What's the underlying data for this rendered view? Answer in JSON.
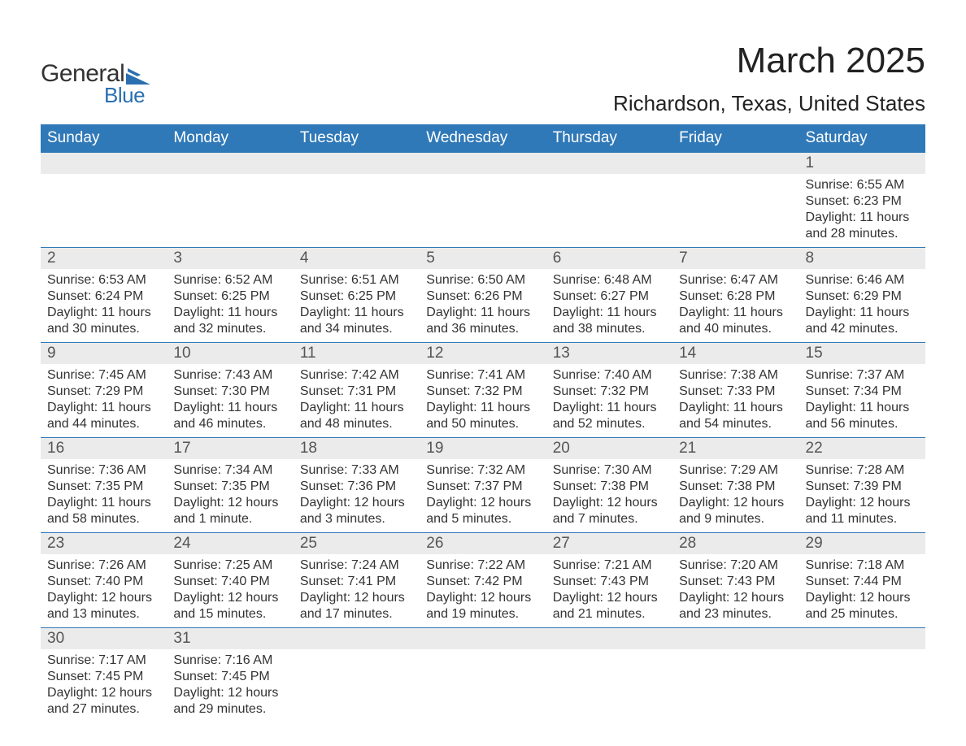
{
  "logo": {
    "text_general": "General",
    "text_blue": "Blue",
    "shape_color": "#2a6fb0"
  },
  "header": {
    "month_title": "March 2025",
    "location": "Richardson, Texas, United States"
  },
  "style": {
    "header_bg": "#3079b8",
    "header_fg": "#ffffff",
    "daynum_bg": "#ebebeb",
    "daynum_fg": "#555555",
    "body_fg": "#333333",
    "divider": "#3079b8",
    "title_fontsize": 44,
    "location_fontsize": 26,
    "header_fontsize": 19,
    "daynum_fontsize": 19,
    "cell_fontsize": 16
  },
  "calendar": {
    "day_headers": [
      "Sunday",
      "Monday",
      "Tuesday",
      "Wednesday",
      "Thursday",
      "Friday",
      "Saturday"
    ],
    "weeks": [
      [
        null,
        null,
        null,
        null,
        null,
        null,
        {
          "n": "1",
          "sunrise": "Sunrise: 6:55 AM",
          "sunset": "Sunset: 6:23 PM",
          "d1": "Daylight: 11 hours",
          "d2": "and 28 minutes."
        }
      ],
      [
        {
          "n": "2",
          "sunrise": "Sunrise: 6:53 AM",
          "sunset": "Sunset: 6:24 PM",
          "d1": "Daylight: 11 hours",
          "d2": "and 30 minutes."
        },
        {
          "n": "3",
          "sunrise": "Sunrise: 6:52 AM",
          "sunset": "Sunset: 6:25 PM",
          "d1": "Daylight: 11 hours",
          "d2": "and 32 minutes."
        },
        {
          "n": "4",
          "sunrise": "Sunrise: 6:51 AM",
          "sunset": "Sunset: 6:25 PM",
          "d1": "Daylight: 11 hours",
          "d2": "and 34 minutes."
        },
        {
          "n": "5",
          "sunrise": "Sunrise: 6:50 AM",
          "sunset": "Sunset: 6:26 PM",
          "d1": "Daylight: 11 hours",
          "d2": "and 36 minutes."
        },
        {
          "n": "6",
          "sunrise": "Sunrise: 6:48 AM",
          "sunset": "Sunset: 6:27 PM",
          "d1": "Daylight: 11 hours",
          "d2": "and 38 minutes."
        },
        {
          "n": "7",
          "sunrise": "Sunrise: 6:47 AM",
          "sunset": "Sunset: 6:28 PM",
          "d1": "Daylight: 11 hours",
          "d2": "and 40 minutes."
        },
        {
          "n": "8",
          "sunrise": "Sunrise: 6:46 AM",
          "sunset": "Sunset: 6:29 PM",
          "d1": "Daylight: 11 hours",
          "d2": "and 42 minutes."
        }
      ],
      [
        {
          "n": "9",
          "sunrise": "Sunrise: 7:45 AM",
          "sunset": "Sunset: 7:29 PM",
          "d1": "Daylight: 11 hours",
          "d2": "and 44 minutes."
        },
        {
          "n": "10",
          "sunrise": "Sunrise: 7:43 AM",
          "sunset": "Sunset: 7:30 PM",
          "d1": "Daylight: 11 hours",
          "d2": "and 46 minutes."
        },
        {
          "n": "11",
          "sunrise": "Sunrise: 7:42 AM",
          "sunset": "Sunset: 7:31 PM",
          "d1": "Daylight: 11 hours",
          "d2": "and 48 minutes."
        },
        {
          "n": "12",
          "sunrise": "Sunrise: 7:41 AM",
          "sunset": "Sunset: 7:32 PM",
          "d1": "Daylight: 11 hours",
          "d2": "and 50 minutes."
        },
        {
          "n": "13",
          "sunrise": "Sunrise: 7:40 AM",
          "sunset": "Sunset: 7:32 PM",
          "d1": "Daylight: 11 hours",
          "d2": "and 52 minutes."
        },
        {
          "n": "14",
          "sunrise": "Sunrise: 7:38 AM",
          "sunset": "Sunset: 7:33 PM",
          "d1": "Daylight: 11 hours",
          "d2": "and 54 minutes."
        },
        {
          "n": "15",
          "sunrise": "Sunrise: 7:37 AM",
          "sunset": "Sunset: 7:34 PM",
          "d1": "Daylight: 11 hours",
          "d2": "and 56 minutes."
        }
      ],
      [
        {
          "n": "16",
          "sunrise": "Sunrise: 7:36 AM",
          "sunset": "Sunset: 7:35 PM",
          "d1": "Daylight: 11 hours",
          "d2": "and 58 minutes."
        },
        {
          "n": "17",
          "sunrise": "Sunrise: 7:34 AM",
          "sunset": "Sunset: 7:35 PM",
          "d1": "Daylight: 12 hours",
          "d2": "and 1 minute."
        },
        {
          "n": "18",
          "sunrise": "Sunrise: 7:33 AM",
          "sunset": "Sunset: 7:36 PM",
          "d1": "Daylight: 12 hours",
          "d2": "and 3 minutes."
        },
        {
          "n": "19",
          "sunrise": "Sunrise: 7:32 AM",
          "sunset": "Sunset: 7:37 PM",
          "d1": "Daylight: 12 hours",
          "d2": "and 5 minutes."
        },
        {
          "n": "20",
          "sunrise": "Sunrise: 7:30 AM",
          "sunset": "Sunset: 7:38 PM",
          "d1": "Daylight: 12 hours",
          "d2": "and 7 minutes."
        },
        {
          "n": "21",
          "sunrise": "Sunrise: 7:29 AM",
          "sunset": "Sunset: 7:38 PM",
          "d1": "Daylight: 12 hours",
          "d2": "and 9 minutes."
        },
        {
          "n": "22",
          "sunrise": "Sunrise: 7:28 AM",
          "sunset": "Sunset: 7:39 PM",
          "d1": "Daylight: 12 hours",
          "d2": "and 11 minutes."
        }
      ],
      [
        {
          "n": "23",
          "sunrise": "Sunrise: 7:26 AM",
          "sunset": "Sunset: 7:40 PM",
          "d1": "Daylight: 12 hours",
          "d2": "and 13 minutes."
        },
        {
          "n": "24",
          "sunrise": "Sunrise: 7:25 AM",
          "sunset": "Sunset: 7:40 PM",
          "d1": "Daylight: 12 hours",
          "d2": "and 15 minutes."
        },
        {
          "n": "25",
          "sunrise": "Sunrise: 7:24 AM",
          "sunset": "Sunset: 7:41 PM",
          "d1": "Daylight: 12 hours",
          "d2": "and 17 minutes."
        },
        {
          "n": "26",
          "sunrise": "Sunrise: 7:22 AM",
          "sunset": "Sunset: 7:42 PM",
          "d1": "Daylight: 12 hours",
          "d2": "and 19 minutes."
        },
        {
          "n": "27",
          "sunrise": "Sunrise: 7:21 AM",
          "sunset": "Sunset: 7:43 PM",
          "d1": "Daylight: 12 hours",
          "d2": "and 21 minutes."
        },
        {
          "n": "28",
          "sunrise": "Sunrise: 7:20 AM",
          "sunset": "Sunset: 7:43 PM",
          "d1": "Daylight: 12 hours",
          "d2": "and 23 minutes."
        },
        {
          "n": "29",
          "sunrise": "Sunrise: 7:18 AM",
          "sunset": "Sunset: 7:44 PM",
          "d1": "Daylight: 12 hours",
          "d2": "and 25 minutes."
        }
      ],
      [
        {
          "n": "30",
          "sunrise": "Sunrise: 7:17 AM",
          "sunset": "Sunset: 7:45 PM",
          "d1": "Daylight: 12 hours",
          "d2": "and 27 minutes."
        },
        {
          "n": "31",
          "sunrise": "Sunrise: 7:16 AM",
          "sunset": "Sunset: 7:45 PM",
          "d1": "Daylight: 12 hours",
          "d2": "and 29 minutes."
        },
        null,
        null,
        null,
        null,
        null
      ]
    ]
  }
}
